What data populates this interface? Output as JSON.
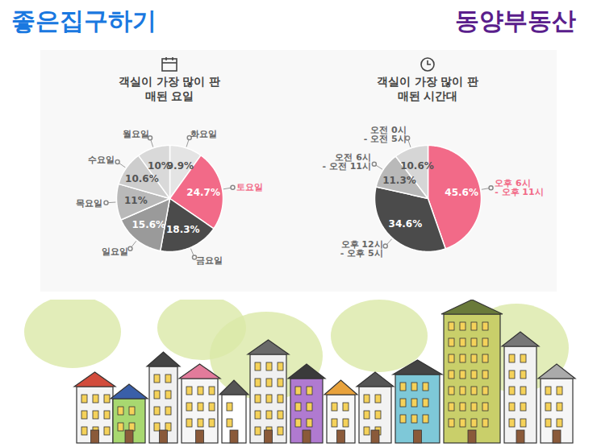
{
  "header": {
    "left": "좋은집구하기",
    "right": "동양부동산"
  },
  "chart_data": [
    {
      "type": "pie",
      "title": "객실이 가장 많이 판매된 요일",
      "categories": [
        "화요일",
        "토요일",
        "금요일",
        "일요일",
        "목요일",
        "수요일",
        "월요일"
      ],
      "values": [
        9.9,
        24.7,
        18.3,
        15.6,
        11,
        10.6,
        10
      ],
      "value_labels": [
        "9.9%",
        "24.7%",
        "18.3%",
        "15.6%",
        "11%",
        "10.6%",
        "10%"
      ],
      "colors": [
        "#e4e4e4",
        "#f26a88",
        "#4b4b4b",
        "#9a9a9a",
        "#b9b9b9",
        "#cdcdcd",
        "#d9d9d9"
      ],
      "data_labels": true
    },
    {
      "type": "pie",
      "title": "객실이 가장 많이 판매된 시간대",
      "categories": [
        "오후 6시 - 오후 11시",
        "오후 12시 - 오후 5시",
        "오전 6시 - 오전 11시",
        "오전 0시 - 오전 5시"
      ],
      "values": [
        45.6,
        34.6,
        11.3,
        10.6
      ],
      "value_labels": [
        "45.6%",
        "34.6%",
        "11.3%",
        "10.6%"
      ],
      "colors": [
        "#f26a88",
        "#4b4b4b",
        "#b9b9b9",
        "#d6d6d6"
      ],
      "data_labels": true
    }
  ]
}
